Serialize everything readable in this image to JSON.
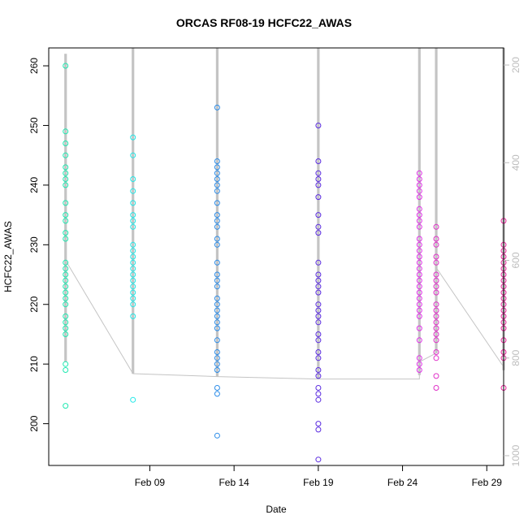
{
  "chart_data": {
    "type": "scatter",
    "title": "ORCAS RF08-19 HCFC22_AWAS",
    "xlabel": "Date",
    "ylabel": "HCFC22_AWAS",
    "xlim": [
      "2016-02-03",
      "2016-03-01"
    ],
    "ylim": [
      193,
      263
    ],
    "x_ticks": [
      "2016-02-09",
      "2016-02-14",
      "2016-02-19",
      "2016-02-24",
      "2016-02-29"
    ],
    "x_tick_labels": [
      "Feb 09",
      "Feb 14",
      "Feb 19",
      "Feb 24",
      "Feb 29"
    ],
    "y_ticks": [
      200,
      210,
      220,
      230,
      240,
      250,
      260
    ],
    "right_axis": {
      "ylim": [
        1020,
        165
      ],
      "ticks": [
        200,
        400,
        600,
        800,
        1000
      ],
      "color": "#bdbdbd"
    },
    "grid": false,
    "legend": "none",
    "series": [
      {
        "date": "2016-02-04",
        "color": "#1ee8b0",
        "values": [
          260,
          249,
          247,
          245,
          243,
          242,
          241,
          240,
          237,
          235,
          234,
          232,
          231,
          227,
          226,
          225,
          224,
          223,
          222,
          221,
          220,
          218,
          217,
          216,
          215,
          210,
          209,
          203
        ]
      },
      {
        "date": "2016-02-08",
        "color": "#22e8e8",
        "values": [
          248,
          245,
          241,
          239,
          237,
          235,
          234,
          233,
          230,
          229,
          228,
          227,
          226,
          225,
          224,
          223,
          222,
          221,
          220,
          218,
          204
        ]
      },
      {
        "date": "2016-02-13",
        "color": "#2b8ce8",
        "values": [
          253,
          244,
          243,
          242,
          241,
          240,
          239,
          237,
          235,
          234,
          233,
          231,
          230,
          227,
          225,
          224,
          223,
          221,
          220,
          219,
          218,
          217,
          216,
          214,
          212,
          211,
          210,
          209,
          206,
          205,
          198
        ]
      },
      {
        "date": "2016-02-19",
        "color": "#5b2ce0",
        "values": [
          250,
          244,
          242,
          241,
          240,
          238,
          235,
          233,
          232,
          227,
          225,
          224,
          223,
          222,
          220,
          219,
          218,
          217,
          215,
          214,
          212,
          211,
          209,
          208,
          206,
          205,
          204,
          200,
          199,
          194
        ]
      },
      {
        "date": "2016-02-25",
        "color": "#e030e8",
        "values": [
          242,
          241,
          240,
          239,
          238,
          236,
          235,
          234,
          233,
          231,
          230,
          229,
          228,
          227,
          226,
          225,
          224,
          223,
          222,
          221,
          220,
          219,
          218,
          216,
          214,
          211,
          210,
          209
        ]
      },
      {
        "date": "2016-02-26",
        "color": "#e030c8",
        "values": [
          233,
          231,
          230,
          228,
          227,
          225,
          224,
          223,
          222,
          220,
          219,
          218,
          217,
          216,
          215,
          214,
          212,
          211,
          208,
          206
        ]
      },
      {
        "date": "2016-03-01",
        "color": "#e8209a",
        "values": [
          234,
          230,
          229,
          228,
          227,
          226,
          225,
          224,
          223,
          222,
          221,
          220,
          219,
          218,
          217,
          216,
          214,
          212,
          211,
          206
        ]
      }
    ],
    "pressure_trace": {
      "color": "#c4c4c4",
      "profiles": [
        {
          "date": "2016-02-04",
          "low": 177,
          "high": 808
        },
        {
          "date": "2016-02-08",
          "low": 165,
          "high": 832
        },
        {
          "date": "2016-02-13",
          "low": 165,
          "high": 838
        },
        {
          "date": "2016-02-19",
          "low": 165,
          "high": 843
        },
        {
          "date": "2016-02-25",
          "low": 165,
          "high": 835
        },
        {
          "date": "2016-02-26",
          "low": 165,
          "high": 790
        },
        {
          "date": "2016-03-01",
          "low": 165,
          "high": 825
        }
      ],
      "path": [
        {
          "date": "2016-02-04",
          "value": 600
        },
        {
          "date": "2016-02-08",
          "value": 832
        },
        {
          "date": "2016-02-13",
          "value": 838
        },
        {
          "date": "2016-02-19",
          "value": 843
        },
        {
          "date": "2016-02-25",
          "value": 843
        },
        {
          "date": "2016-02-25",
          "value": 808
        },
        {
          "date": "2016-02-26",
          "value": 790
        },
        {
          "date": "2016-02-26",
          "value": 615
        },
        {
          "date": "2016-03-01",
          "value": 818
        }
      ]
    }
  }
}
